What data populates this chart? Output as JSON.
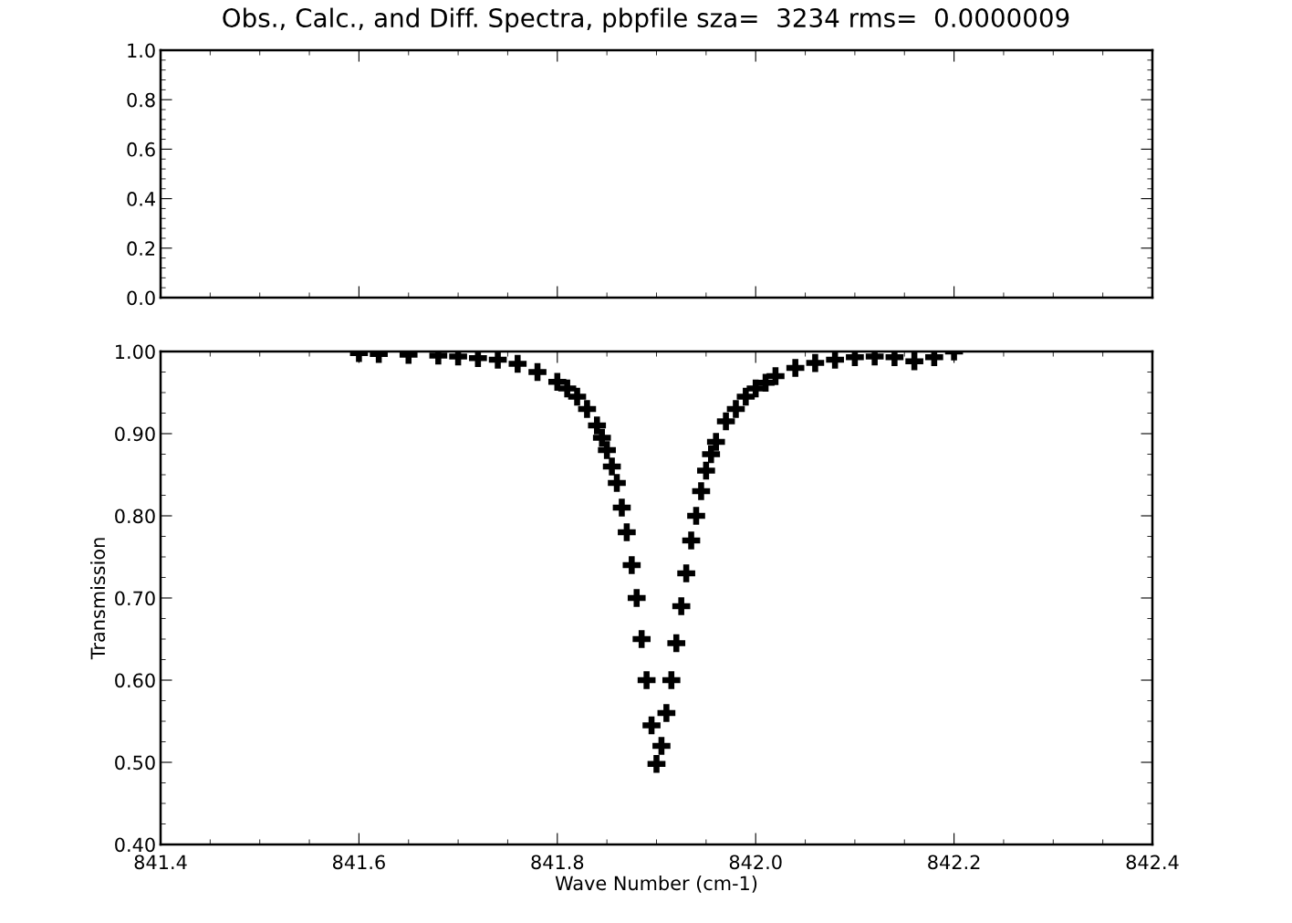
{
  "chart_data": [
    {
      "type": "line",
      "title": "Obs., Calc., and Diff. Spectra, pbpfile sza=  3234 rms=  0.0000009",
      "xlim": [
        841.4,
        842.4
      ],
      "xticks": [
        841.4,
        841.6,
        841.8,
        842.0,
        842.2,
        842.4
      ],
      "ylim": [
        0,
        1
      ],
      "yticks": [
        {
          "value": 0,
          "label": "0.0"
        },
        {
          "value": 0.2,
          "label": "0.2"
        },
        {
          "value": 0.4,
          "label": "0.4"
        },
        {
          "value": 0.6,
          "label": "0.6"
        },
        {
          "value": 0.8,
          "label": "0.8"
        },
        {
          "value": 1,
          "label": "1.0"
        }
      ],
      "tick_labels": "y",
      "grid": false,
      "legend": false
    },
    {
      "type": "scatter",
      "marker": "cross",
      "xlabel": "Wave Number (cm-1)",
      "ylabel": "Transmission",
      "grid": false,
      "legend": false,
      "xlim": [
        841.4,
        842.4
      ],
      "xticks": [
        {
          "value": 841.4,
          "label": "841.4"
        },
        {
          "value": 841.6,
          "label": "841.6"
        },
        {
          "value": 841.8,
          "label": "841.8"
        },
        {
          "value": 842.0,
          "label": "842.0"
        },
        {
          "value": 842.2,
          "label": "842.2"
        },
        {
          "value": 842.4,
          "label": "842.4"
        }
      ],
      "ylim": [
        0.4,
        1.0
      ],
      "yticks": [
        {
          "value": 0.4,
          "label": "0.40"
        },
        {
          "value": 0.5,
          "label": "0.50"
        },
        {
          "value": 0.6,
          "label": "0.60"
        },
        {
          "value": 0.7,
          "label": "0.70"
        },
        {
          "value": 0.8,
          "label": "0.80"
        },
        {
          "value": 0.9,
          "label": "0.90"
        },
        {
          "value": 1.0,
          "label": "1.00"
        }
      ],
      "series": [
        {
          "color": "#000000",
          "x": [
            841.6,
            841.62,
            841.65,
            841.68,
            841.7,
            841.72,
            841.74,
            841.76,
            841.78,
            841.8,
            841.81,
            841.82,
            841.83,
            841.84,
            841.845,
            841.85,
            841.855,
            841.86,
            841.865,
            841.87,
            841.875,
            841.88,
            841.885,
            841.89,
            841.895,
            841.9,
            841.905,
            841.91,
            841.915,
            841.92,
            841.925,
            841.93,
            841.935,
            841.94,
            841.945,
            841.95,
            841.955,
            841.96,
            841.97,
            841.98,
            841.99,
            842.0,
            842.01,
            842.02,
            842.04,
            842.06,
            842.08,
            842.1,
            842.12,
            842.14,
            842.16,
            842.18,
            842.2
          ],
          "values": [
            0.998,
            0.997,
            0.996,
            0.995,
            0.994,
            0.992,
            0.99,
            0.985,
            0.975,
            0.963,
            0.955,
            0.945,
            0.93,
            0.91,
            0.895,
            0.88,
            0.86,
            0.84,
            0.81,
            0.78,
            0.74,
            0.7,
            0.65,
            0.6,
            0.545,
            0.498,
            0.52,
            0.56,
            0.6,
            0.645,
            0.69,
            0.73,
            0.77,
            0.8,
            0.83,
            0.855,
            0.875,
            0.89,
            0.915,
            0.93,
            0.945,
            0.955,
            0.962,
            0.97,
            0.98,
            0.986,
            0.99,
            0.993,
            0.994,
            0.993,
            0.988,
            0.993,
            1.0
          ]
        }
      ]
    }
  ]
}
